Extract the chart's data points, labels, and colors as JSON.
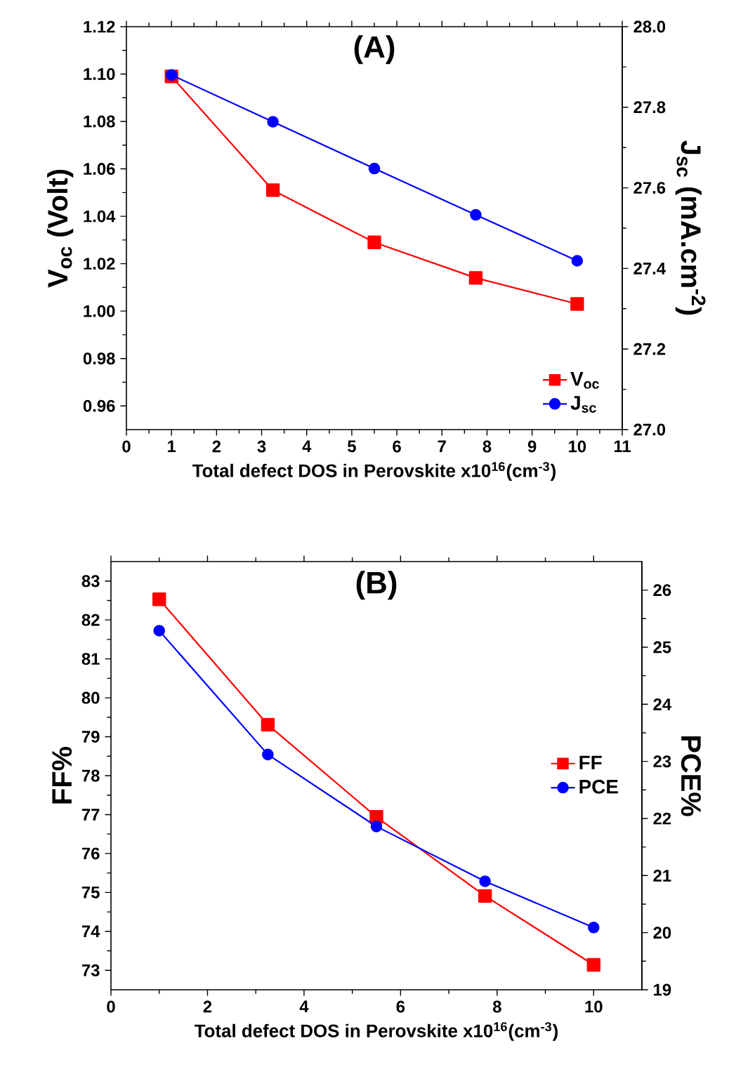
{
  "chart_data": [
    {
      "type": "line",
      "title": "(A)",
      "xlabel": "Total defect DOS in Perovskite x10$^{16}$(cm$^{-3}$)",
      "ylabel": "V$_{oc}$ (Volt)",
      "y2label": "J$_{sc}$ (mA.cm$^{-2}$)",
      "x": [
        1,
        3.25,
        5.5,
        7.75,
        10
      ],
      "series": [
        {
          "name": "V$_{oc}$",
          "color": "#ff0000",
          "marker": "square",
          "values": [
            1.099,
            1.051,
            1.029,
            1.014,
            1.003
          ]
        },
        {
          "name": "J$_{sc}$",
          "color": "#0000ff",
          "marker": "circle",
          "axis": "y2",
          "values": [
            27.88,
            27.764,
            27.648,
            27.533,
            27.419
          ]
        }
      ],
      "xlim": [
        0,
        11
      ],
      "xticks": [
        0,
        1,
        2,
        3,
        4,
        5,
        6,
        7,
        8,
        9,
        10,
        11
      ],
      "ylim": [
        0.95,
        1.12
      ],
      "yticks": [
        {
          "value": 0.96,
          "label": "0.96"
        },
        {
          "value": 0.98,
          "label": "0.98"
        },
        {
          "value": 1.0,
          "label": "1.00"
        },
        {
          "value": 1.02,
          "label": "1.02"
        },
        {
          "value": 1.04,
          "label": "1.04"
        },
        {
          "value": 1.06,
          "label": "1.06"
        },
        {
          "value": 1.08,
          "label": "1.08"
        },
        {
          "value": 1.1,
          "label": "1.10"
        },
        {
          "value": 1.12,
          "label": "1.12"
        }
      ],
      "y2lim": [
        27.0,
        28.0
      ],
      "y2ticks": [
        {
          "value": 27.0,
          "label": "27.0"
        },
        27.2,
        27.4,
        27.6,
        27.8,
        {
          "value": 28.0,
          "label": "28.0"
        }
      ],
      "legend": "bottom right",
      "grid": false
    },
    {
      "type": "line",
      "title": "(B)",
      "xlabel": "Total defect DOS in Perovskite x10$^{16}$(cm$^{-3}$)",
      "ylabel": "FF%",
      "y2label": "PCE%",
      "x": [
        1,
        3.25,
        5.5,
        7.75,
        10
      ],
      "series": [
        {
          "name": "FF",
          "color": "#ff0000",
          "marker": "square",
          "values": [
            82.53,
            79.31,
            76.94,
            74.91,
            73.14
          ]
        },
        {
          "name": "PCE",
          "color": "#0000ff",
          "marker": "circle",
          "axis": "y2",
          "values": [
            25.29,
            23.12,
            21.86,
            20.9,
            20.09
          ]
        }
      ],
      "xlim": [
        0,
        11
      ],
      "xticks": [
        0,
        2,
        4,
        6,
        8,
        10
      ],
      "ylim": [
        72.5,
        83.5
      ],
      "yticks": [
        73,
        74,
        75,
        76,
        77,
        78,
        79,
        80,
        81,
        82,
        83
      ],
      "y2lim": [
        19,
        26.5
      ],
      "y2ticks": [
        19,
        20,
        21,
        22,
        23,
        24,
        25,
        26
      ],
      "legend": "right",
      "grid": false
    }
  ]
}
